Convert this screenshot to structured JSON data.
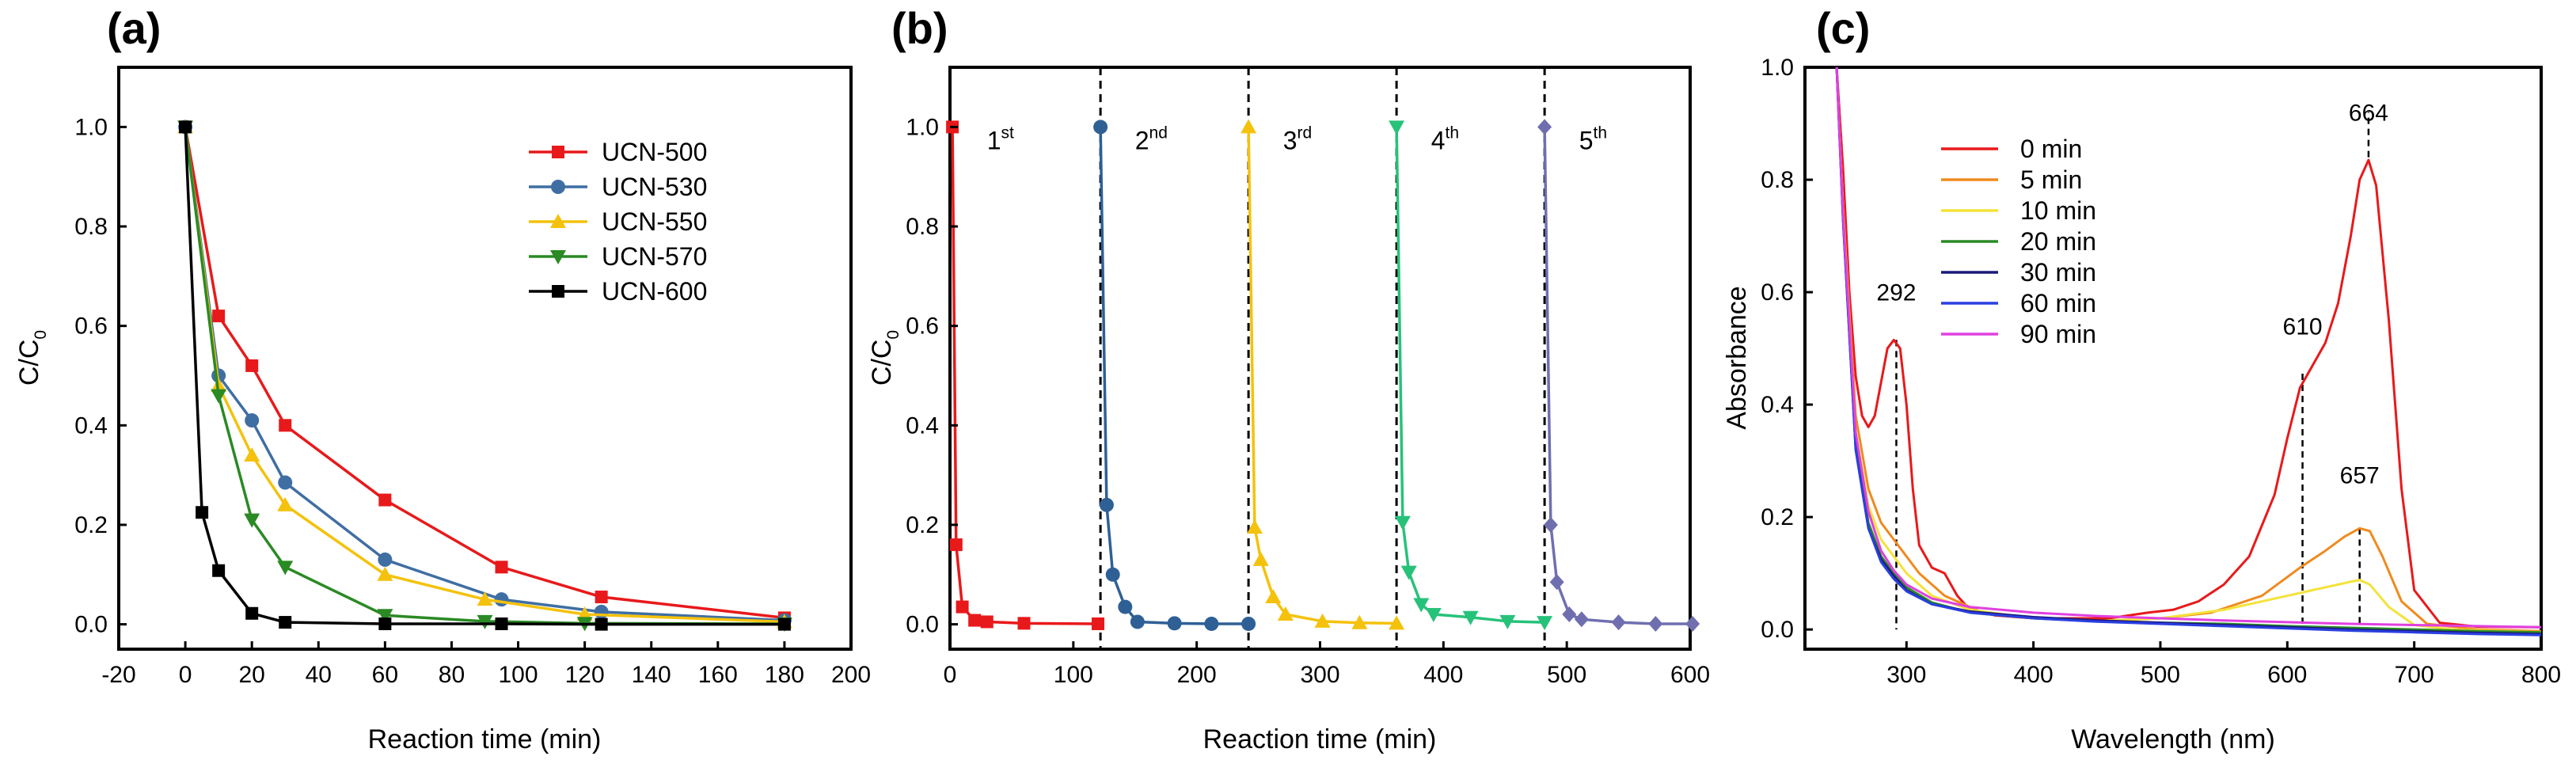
{
  "chart_data": [
    {
      "panel": "(a)",
      "type": "line",
      "xlabel": "Reaction time (min)",
      "ylabel": "C/C",
      "ylabel_sub": "0",
      "xlim": [
        -20,
        200
      ],
      "ylim": [
        -0.05,
        1.12
      ],
      "xticks": [
        -20,
        0,
        20,
        40,
        60,
        80,
        100,
        120,
        140,
        160,
        180,
        200
      ],
      "yticks": [
        0.0,
        0.2,
        0.4,
        0.6,
        0.8,
        1.0
      ],
      "legend_position": "upper-right",
      "series": [
        {
          "name": "UCN-500",
          "color": "#e8191b",
          "marker": "square",
          "x": [
            0,
            10,
            20,
            30,
            60,
            95,
            125,
            180
          ],
          "y": [
            1.0,
            0.62,
            0.52,
            0.4,
            0.25,
            0.115,
            0.055,
            0.013
          ]
        },
        {
          "name": "UCN-530",
          "color": "#3f6ea3",
          "marker": "circle",
          "x": [
            0,
            10,
            20,
            30,
            60,
            95,
            125,
            180
          ],
          "y": [
            1.0,
            0.5,
            0.41,
            0.285,
            0.13,
            0.05,
            0.025,
            0.008
          ]
        },
        {
          "name": "UCN-550",
          "color": "#f4c20d",
          "marker": "triangle-up",
          "x": [
            0,
            10,
            20,
            30,
            60,
            90,
            120,
            180
          ],
          "y": [
            1.0,
            0.48,
            0.34,
            0.24,
            0.1,
            0.05,
            0.02,
            0.005
          ]
        },
        {
          "name": "UCN-570",
          "color": "#2a8a24",
          "marker": "triangle-down",
          "x": [
            0,
            10,
            20,
            30,
            60,
            90,
            120,
            180
          ],
          "y": [
            1.0,
            0.46,
            0.21,
            0.115,
            0.018,
            0.006,
            0.002,
            0.001
          ]
        },
        {
          "name": "UCN-600",
          "color": "#000000",
          "marker": "square",
          "x": [
            0,
            5,
            10,
            20,
            30,
            60,
            95,
            125,
            180
          ],
          "y": [
            1.0,
            0.225,
            0.108,
            0.022,
            0.004,
            0.001,
            0.001,
            0.0,
            0.0
          ]
        }
      ]
    },
    {
      "panel": "(b)",
      "type": "line",
      "xlabel": "Reaction time (min)",
      "ylabel": "C/C",
      "ylabel_sub": "0",
      "xlim": [
        0,
        600
      ],
      "ylim": [
        -0.05,
        1.12
      ],
      "xticks": [
        0,
        100,
        200,
        300,
        400,
        500,
        600
      ],
      "yticks": [
        0.0,
        0.2,
        0.4,
        0.6,
        0.8,
        1.0
      ],
      "cycle_boundaries": [
        122,
        242,
        362,
        482
      ],
      "cycle_labels": [
        {
          "num": "1",
          "sup": "st",
          "x": 30
        },
        {
          "num": "2",
          "sup": "nd",
          "x": 150
        },
        {
          "num": "3",
          "sup": "rd",
          "x": 270
        },
        {
          "num": "4",
          "sup": "th",
          "x": 390
        },
        {
          "num": "5",
          "sup": "th",
          "x": 510
        }
      ],
      "series": [
        {
          "name": "cycle 1",
          "color": "#e8191b",
          "marker": "square",
          "x": [
            2,
            5,
            10,
            20,
            30,
            60,
            120
          ],
          "y": [
            1.0,
            0.16,
            0.035,
            0.008,
            0.005,
            0.002,
            0.001
          ]
        },
        {
          "name": "cycle 2",
          "color": "#2e6096",
          "marker": "circle",
          "x": [
            122,
            127,
            132,
            142,
            152,
            182,
            212,
            242
          ],
          "y": [
            1.0,
            0.24,
            0.1,
            0.035,
            0.005,
            0.002,
            0.001,
            0.001
          ]
        },
        {
          "name": "cycle 3",
          "color": "#f4c20d",
          "marker": "triangle-up",
          "x": [
            242,
            247,
            252,
            262,
            272,
            302,
            332,
            362
          ],
          "y": [
            1.0,
            0.195,
            0.13,
            0.055,
            0.02,
            0.006,
            0.003,
            0.002
          ]
        },
        {
          "name": "cycle 4",
          "color": "#27c27a",
          "marker": "triangle-down",
          "x": [
            362,
            367,
            372,
            382,
            392,
            422,
            452,
            482
          ],
          "y": [
            1.0,
            0.205,
            0.105,
            0.04,
            0.02,
            0.014,
            0.006,
            0.004
          ]
        },
        {
          "name": "cycle 5",
          "color": "#6f6fb0",
          "marker": "diamond",
          "x": [
            482,
            487,
            492,
            502,
            512,
            542,
            572,
            602
          ],
          "y": [
            1.0,
            0.2,
            0.085,
            0.02,
            0.01,
            0.004,
            0.001,
            0.001
          ]
        }
      ]
    },
    {
      "panel": "(c)",
      "type": "line",
      "xlabel": "Wavelength (nm)",
      "ylabel": "Absorbance",
      "xlim": [
        220,
        800
      ],
      "ylim": [
        -0.035,
        1.0
      ],
      "xticks": [
        300,
        400,
        500,
        600,
        700,
        800
      ],
      "yticks": [
        0.0,
        0.2,
        0.4,
        0.6,
        0.8,
        1.0
      ],
      "legend_position": "upper-left",
      "annotations": [
        {
          "text": "292",
          "x": 292,
          "y_from": 0.515,
          "y_to": 0.0,
          "label_y": 0.585
        },
        {
          "text": "610",
          "x": 612,
          "y_from": 0.455,
          "y_to": 0.0,
          "label_y": 0.525
        },
        {
          "text": "664",
          "x": 664,
          "y_from": 0.84,
          "y_to": 0.92,
          "label_y": 0.905
        },
        {
          "text": "657",
          "x": 657,
          "y_from": 0.18,
          "y_to": 0.0,
          "label_y": 0.26
        }
      ],
      "series": [
        {
          "name": "0 min",
          "color": "#e8191b",
          "x": [
            245,
            250,
            255,
            260,
            265,
            270,
            275,
            280,
            285,
            290,
            295,
            300,
            305,
            310,
            320,
            330,
            340,
            350,
            370,
            400,
            430,
            460,
            490,
            510,
            530,
            550,
            570,
            590,
            600,
            610,
            620,
            630,
            640,
            650,
            657,
            664,
            670,
            680,
            690,
            700,
            720,
            750,
            800
          ],
          "y": [
            1.0,
            0.82,
            0.6,
            0.45,
            0.38,
            0.36,
            0.38,
            0.44,
            0.5,
            0.515,
            0.5,
            0.4,
            0.25,
            0.15,
            0.11,
            0.1,
            0.06,
            0.035,
            0.025,
            0.02,
            0.02,
            0.02,
            0.03,
            0.035,
            0.05,
            0.08,
            0.13,
            0.24,
            0.34,
            0.43,
            0.47,
            0.51,
            0.58,
            0.7,
            0.8,
            0.835,
            0.79,
            0.55,
            0.25,
            0.07,
            0.012,
            0.005,
            0.004
          ]
        },
        {
          "name": "5 min",
          "color": "#f08a1f",
          "x": [
            245,
            250,
            260,
            270,
            280,
            290,
            300,
            310,
            330,
            360,
            400,
            450,
            500,
            540,
            580,
            610,
            630,
            645,
            657,
            665,
            675,
            690,
            710,
            750,
            800
          ],
          "y": [
            1.0,
            0.75,
            0.38,
            0.25,
            0.19,
            0.16,
            0.13,
            0.1,
            0.06,
            0.03,
            0.02,
            0.015,
            0.02,
            0.03,
            0.06,
            0.11,
            0.14,
            0.165,
            0.18,
            0.175,
            0.13,
            0.05,
            0.01,
            0.0,
            -0.003
          ]
        },
        {
          "name": "10 min",
          "color": "#f3e33a",
          "x": [
            245,
            250,
            260,
            270,
            280,
            290,
            300,
            320,
            350,
            400,
            450,
            500,
            550,
            600,
            630,
            650,
            657,
            665,
            680,
            700,
            730,
            800
          ],
          "y": [
            1.0,
            0.75,
            0.35,
            0.22,
            0.16,
            0.13,
            0.1,
            0.06,
            0.035,
            0.02,
            0.015,
            0.02,
            0.035,
            0.06,
            0.075,
            0.085,
            0.088,
            0.08,
            0.04,
            0.008,
            0.0,
            -0.005
          ]
        },
        {
          "name": "20 min",
          "color": "#2a8a24",
          "x": [
            245,
            250,
            260,
            270,
            280,
            290,
            300,
            320,
            350,
            400,
            450,
            500,
            550,
            600,
            650,
            700,
            750,
            800
          ],
          "y": [
            1.0,
            0.74,
            0.33,
            0.19,
            0.13,
            0.1,
            0.075,
            0.048,
            0.03,
            0.02,
            0.015,
            0.012,
            0.01,
            0.006,
            0.003,
            0.0,
            -0.003,
            -0.005
          ]
        },
        {
          "name": "30 min",
          "color": "#1a1a7a",
          "x": [
            245,
            250,
            260,
            270,
            280,
            290,
            300,
            320,
            350,
            400,
            450,
            500,
            550,
            600,
            650,
            700,
            750,
            800
          ],
          "y": [
            1.0,
            0.73,
            0.32,
            0.18,
            0.125,
            0.095,
            0.07,
            0.045,
            0.032,
            0.022,
            0.016,
            0.012,
            0.008,
            0.004,
            0.0,
            -0.003,
            -0.006,
            -0.008
          ]
        },
        {
          "name": "60 min",
          "color": "#2a3fe0",
          "x": [
            245,
            250,
            260,
            270,
            280,
            290,
            300,
            320,
            350,
            400,
            450,
            500,
            550,
            600,
            650,
            700,
            750,
            800
          ],
          "y": [
            1.0,
            0.73,
            0.32,
            0.18,
            0.12,
            0.09,
            0.068,
            0.045,
            0.03,
            0.02,
            0.014,
            0.01,
            0.006,
            0.002,
            -0.002,
            -0.005,
            -0.008,
            -0.01
          ]
        },
        {
          "name": "90 min",
          "color": "#e040e0",
          "x": [
            245,
            250,
            260,
            270,
            280,
            290,
            300,
            320,
            350,
            400,
            450,
            500,
            550,
            600,
            650,
            700,
            750,
            800
          ],
          "y": [
            1.0,
            0.74,
            0.35,
            0.21,
            0.14,
            0.105,
            0.08,
            0.055,
            0.04,
            0.03,
            0.024,
            0.02,
            0.016,
            0.013,
            0.01,
            0.008,
            0.006,
            0.004
          ]
        }
      ]
    }
  ]
}
